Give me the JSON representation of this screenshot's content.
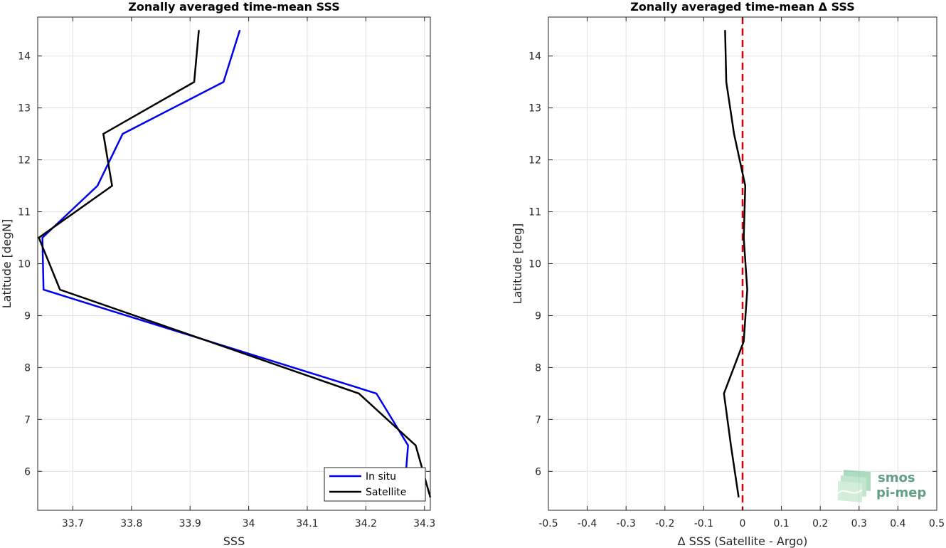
{
  "chart_data": [
    {
      "type": "line",
      "title": "Zonally averaged time-mean SSS",
      "xlabel": "SSS",
      "ylabel": "Latitude [degN]",
      "xlim": [
        33.64,
        34.31
      ],
      "ylim": [
        5.25,
        14.75
      ],
      "xticks": [
        33.7,
        33.8,
        33.9,
        34.0,
        34.1,
        34.2,
        34.3
      ],
      "xtick_labels": [
        "33.7",
        "33.8",
        "33.9",
        "34",
        "34.1",
        "34.2",
        "34.3"
      ],
      "yticks": [
        6,
        7,
        8,
        9,
        10,
        11,
        12,
        13,
        14
      ],
      "ytick_labels": [
        "6",
        "7",
        "8",
        "9",
        "10",
        "11",
        "12",
        "13",
        "14"
      ],
      "grid": true,
      "legend_position": "bottom-right",
      "series": [
        {
          "name": "In situ",
          "color": "#0000ee",
          "x": [
            34.265,
            34.272,
            34.218,
            33.65,
            33.648,
            33.742,
            33.785,
            33.957,
            33.985
          ],
          "y": [
            5.5,
            6.5,
            7.5,
            9.5,
            10.5,
            11.5,
            12.5,
            13.5,
            14.5
          ]
        },
        {
          "name": "Satellite",
          "color": "#000000",
          "x": [
            34.31,
            34.285,
            34.188,
            33.678,
            33.642,
            33.767,
            33.752,
            33.907,
            33.915
          ],
          "y": [
            5.5,
            6.5,
            7.5,
            9.5,
            10.5,
            11.5,
            12.5,
            13.5,
            14.5
          ]
        }
      ]
    },
    {
      "type": "line",
      "title": "Zonally averaged time-mean Δ SSS",
      "xlabel": "Δ SSS (Satellite - Argo)",
      "ylabel": "Latitude [deg]",
      "xlim": [
        -0.5,
        0.5
      ],
      "ylim": [
        5.25,
        14.75
      ],
      "xticks": [
        -0.5,
        -0.4,
        -0.3,
        -0.2,
        -0.1,
        0,
        0.1,
        0.2,
        0.3,
        0.4,
        0.5
      ],
      "xtick_labels": [
        "-0.5",
        "-0.4",
        "-0.3",
        "-0.2",
        "-0.1",
        "0",
        "0.1",
        "0.2",
        "0.3",
        "0.4",
        "0.5"
      ],
      "yticks": [
        6,
        7,
        8,
        9,
        10,
        11,
        12,
        13,
        14
      ],
      "ytick_labels": [
        "6",
        "7",
        "8",
        "9",
        "10",
        "11",
        "12",
        "13",
        "14"
      ],
      "grid": true,
      "reference_line": {
        "x": 0,
        "color": "#dd0000",
        "style": "dashed"
      },
      "series": [
        {
          "color": "#000000",
          "x": [
            -0.01,
            -0.03,
            -0.048,
            0.003,
            0.012,
            0.003,
            0.007,
            -0.022,
            -0.042,
            -0.045
          ],
          "y": [
            5.5,
            6.5,
            7.5,
            8.5,
            9.5,
            10.5,
            11.5,
            12.5,
            13.5,
            14.5
          ]
        }
      ]
    }
  ],
  "logo": {
    "line1": "smos",
    "line2": "pi-mep"
  }
}
